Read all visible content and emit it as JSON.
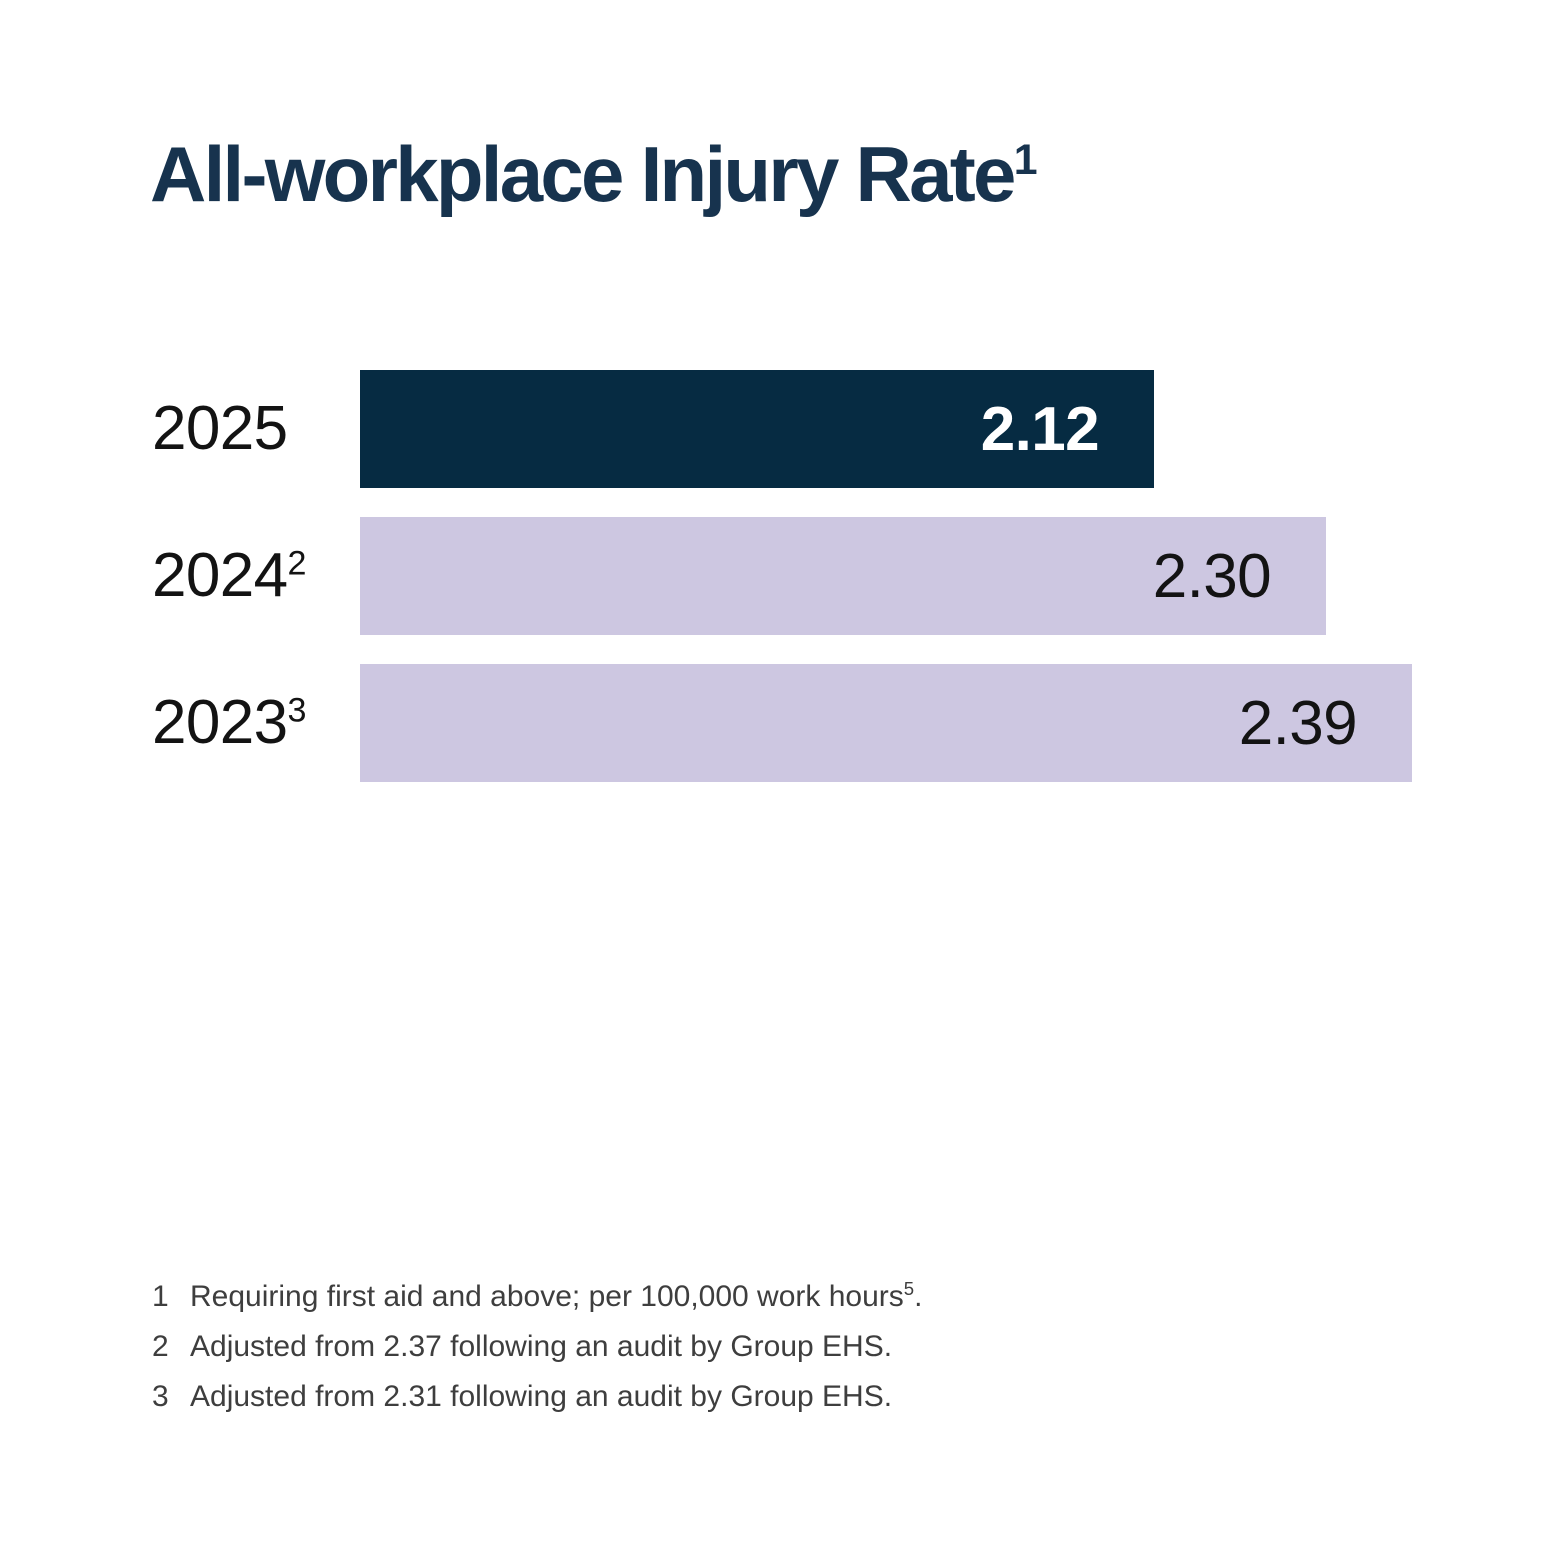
{
  "colors": {
    "background": "#FFFFFF",
    "title_text": "#17334E",
    "highlight_bar": "#062B42",
    "regular_bar": "#CDC7E1",
    "label_text": "#131313",
    "value_on_highlight": "#FFFFFF",
    "footnote_text": "#3E3E3E"
  },
  "chart_data": {
    "type": "bar",
    "orientation": "horizontal",
    "title": "All-workplace Injury Rate",
    "title_sup": "1",
    "categories": [
      "2025",
      "2024",
      "2023"
    ],
    "category_sups": [
      "",
      "2",
      "3"
    ],
    "values": [
      2.12,
      2.3,
      2.39
    ],
    "value_labels": [
      "2.12",
      "2.30",
      "2.39"
    ],
    "highlight_index": 0,
    "xlim": [
      1.29,
      2.39
    ],
    "grid": "off",
    "legend": "none",
    "value_label_position": "inside-end"
  },
  "footnotes": [
    {
      "num": "1",
      "text": "Requiring first aid and above; per 100,000 work hours",
      "sup": "5",
      "tail": "."
    },
    {
      "num": "2",
      "text": "Adjusted from 2.37 following an audit by Group EHS.",
      "sup": "",
      "tail": ""
    },
    {
      "num": "3",
      "text": "Adjusted from 2.31 following an audit by Group EHS.",
      "sup": "",
      "tail": ""
    }
  ]
}
